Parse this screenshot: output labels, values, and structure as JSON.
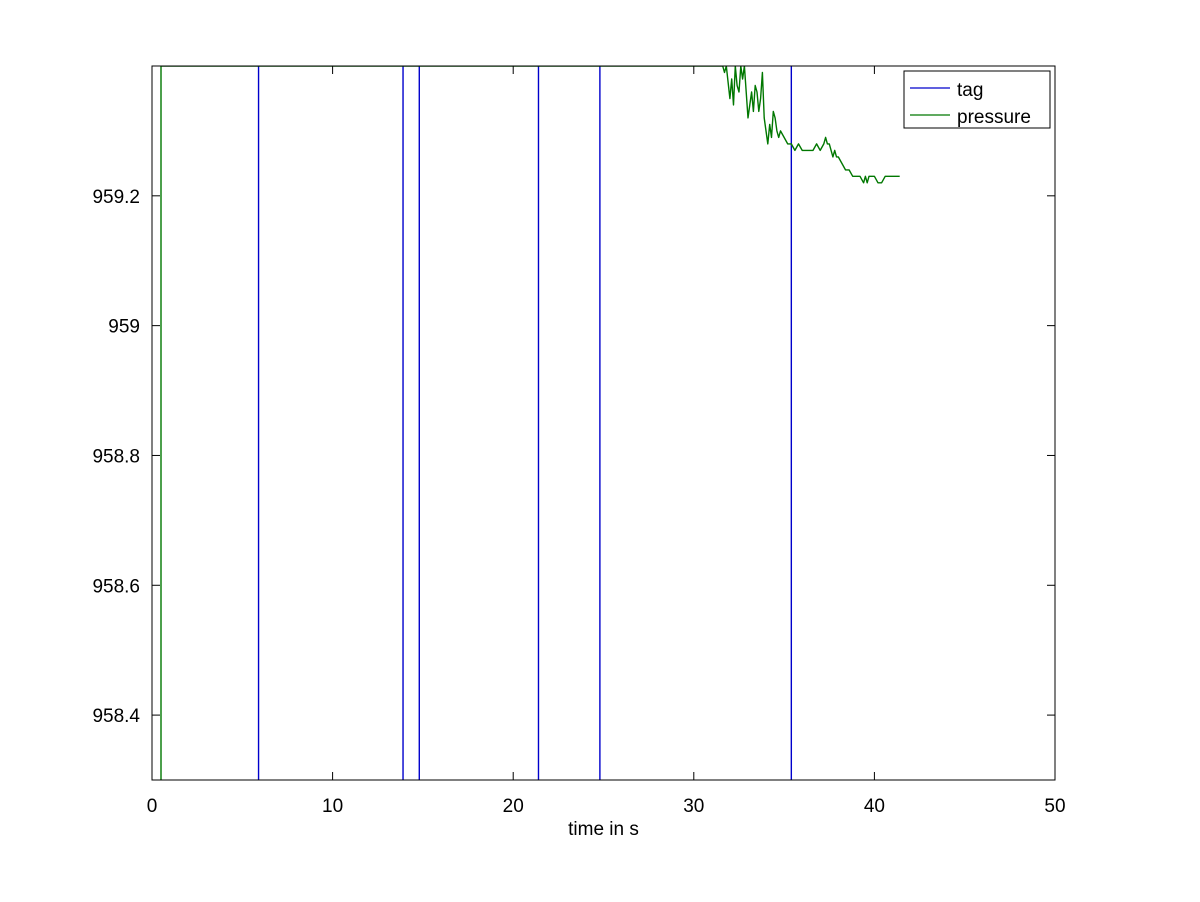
{
  "chart_data": {
    "type": "line",
    "title": "",
    "xlabel": "time in s",
    "ylabel": "",
    "xlim": [
      0,
      50
    ],
    "ylim": [
      958.3,
      959.4
    ],
    "xticks": [
      0,
      10,
      20,
      30,
      40,
      50
    ],
    "xtick_labels": [
      "0",
      "10",
      "20",
      "30",
      "40",
      "50"
    ],
    "yticks": [
      958.4,
      958.6,
      958.8,
      959.0,
      959.2
    ],
    "ytick_labels": [
      "958.4",
      "958.6",
      "958.8",
      "959",
      "959.2"
    ],
    "grid": false,
    "legend": {
      "position": "top-right",
      "entries": [
        {
          "label": "tag",
          "color": "#0000cc"
        },
        {
          "label": "pressure",
          "color": "#007700"
        }
      ]
    },
    "series": [
      {
        "name": "tag",
        "kind": "vertical-lines",
        "color": "#0000cc",
        "x": [
          5.9,
          13.9,
          14.8,
          21.4,
          24.8,
          35.4
        ]
      },
      {
        "name": "pressure",
        "kind": "line",
        "color": "#007700",
        "x": [
          0.5,
          0.5,
          31.6,
          31.7,
          31.8,
          32.0,
          32.1,
          32.2,
          32.3,
          32.4,
          32.5,
          32.6,
          32.7,
          32.8,
          32.9,
          33.0,
          33.1,
          33.2,
          33.3,
          33.4,
          33.5,
          33.6,
          33.7,
          33.8,
          33.9,
          34.0,
          34.1,
          34.2,
          34.3,
          34.4,
          34.5,
          34.6,
          34.7,
          34.8,
          35.0,
          35.2,
          35.4,
          35.6,
          35.8,
          36.0,
          36.2,
          36.4,
          36.6,
          36.8,
          37.0,
          37.2,
          37.3,
          37.4,
          37.5,
          37.6,
          37.7,
          37.8,
          37.9,
          38.0,
          38.2,
          38.4,
          38.6,
          38.8,
          39.0,
          39.2,
          39.4,
          39.5,
          39.6,
          39.7,
          39.8,
          40.0,
          40.2,
          40.4,
          40.6,
          40.8,
          41.0,
          41.2,
          41.4
        ],
        "y": [
          958.3,
          959.4,
          959.4,
          959.39,
          959.4,
          959.35,
          959.38,
          959.34,
          959.4,
          959.37,
          959.36,
          959.4,
          959.38,
          959.4,
          959.36,
          959.32,
          959.34,
          959.36,
          959.33,
          959.37,
          959.36,
          959.33,
          959.35,
          959.39,
          959.32,
          959.3,
          959.28,
          959.31,
          959.29,
          959.33,
          959.32,
          959.3,
          959.29,
          959.3,
          959.29,
          959.28,
          959.28,
          959.27,
          959.28,
          959.27,
          959.27,
          959.27,
          959.27,
          959.28,
          959.27,
          959.28,
          959.29,
          959.28,
          959.28,
          959.27,
          959.26,
          959.27,
          959.26,
          959.26,
          959.25,
          959.24,
          959.24,
          959.23,
          959.23,
          959.23,
          959.22,
          959.23,
          959.22,
          959.23,
          959.23,
          959.23,
          959.22,
          959.22,
          959.23,
          959.23,
          959.23,
          959.23,
          959.23
        ]
      }
    ]
  }
}
